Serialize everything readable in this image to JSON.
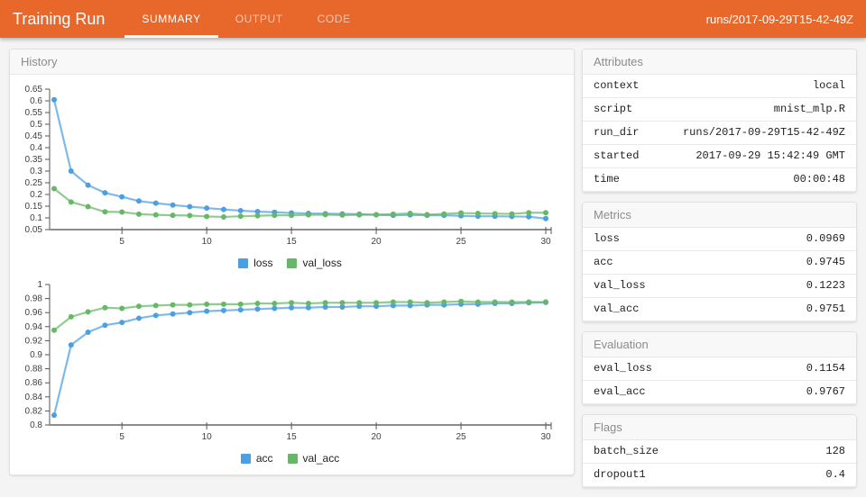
{
  "app": {
    "title": "Training Run",
    "tabs": [
      {
        "label": "SUMMARY",
        "active": true
      },
      {
        "label": "OUTPUT",
        "active": false
      },
      {
        "label": "CODE",
        "active": false
      }
    ],
    "run_label": "runs/2017-09-29T15-42-49Z",
    "accent_color": "#e8682c"
  },
  "history_panel": {
    "title": "History"
  },
  "chart_data": [
    {
      "name": "loss-chart",
      "type": "line",
      "x": [
        1,
        2,
        3,
        4,
        5,
        6,
        7,
        8,
        9,
        10,
        11,
        12,
        13,
        14,
        15,
        16,
        17,
        18,
        19,
        20,
        21,
        22,
        23,
        24,
        25,
        26,
        27,
        28,
        29,
        30
      ],
      "xticks": [
        5,
        10,
        15,
        20,
        25,
        30
      ],
      "ylim": [
        0.05,
        0.65
      ],
      "ytick_step": 0.05,
      "grid": false,
      "legend_position": "bottom-center",
      "series": [
        {
          "name": "loss",
          "color": "#4c9fe0",
          "values": [
            0.605,
            0.3,
            0.24,
            0.207,
            0.19,
            0.172,
            0.163,
            0.155,
            0.148,
            0.142,
            0.136,
            0.131,
            0.127,
            0.124,
            0.121,
            0.119,
            0.118,
            0.117,
            0.116,
            0.113,
            0.111,
            0.113,
            0.111,
            0.111,
            0.109,
            0.107,
            0.107,
            0.106,
            0.105,
            0.097
          ]
        },
        {
          "name": "val_loss",
          "color": "#66b766",
          "values": [
            0.225,
            0.168,
            0.148,
            0.126,
            0.125,
            0.116,
            0.113,
            0.111,
            0.11,
            0.106,
            0.104,
            0.107,
            0.109,
            0.111,
            0.111,
            0.113,
            0.114,
            0.112,
            0.113,
            0.114,
            0.116,
            0.119,
            0.114,
            0.117,
            0.121,
            0.119,
            0.118,
            0.117,
            0.122,
            0.122
          ]
        }
      ]
    },
    {
      "name": "accuracy-chart",
      "type": "line",
      "x": [
        1,
        2,
        3,
        4,
        5,
        6,
        7,
        8,
        9,
        10,
        11,
        12,
        13,
        14,
        15,
        16,
        17,
        18,
        19,
        20,
        21,
        22,
        23,
        24,
        25,
        26,
        27,
        28,
        29,
        30
      ],
      "xticks": [
        5,
        10,
        15,
        20,
        25,
        30
      ],
      "ylim": [
        0.8,
        1.0
      ],
      "ytick_step": 0.02,
      "grid": false,
      "legend_position": "bottom-center",
      "series": [
        {
          "name": "acc",
          "color": "#4c9fe0",
          "values": [
            0.814,
            0.914,
            0.932,
            0.942,
            0.946,
            0.952,
            0.956,
            0.958,
            0.96,
            0.962,
            0.963,
            0.964,
            0.965,
            0.966,
            0.967,
            0.967,
            0.968,
            0.968,
            0.969,
            0.969,
            0.97,
            0.97,
            0.971,
            0.971,
            0.972,
            0.972,
            0.973,
            0.973,
            0.974,
            0.9745
          ]
        },
        {
          "name": "val_acc",
          "color": "#66b766",
          "values": [
            0.935,
            0.954,
            0.961,
            0.967,
            0.966,
            0.969,
            0.97,
            0.971,
            0.971,
            0.972,
            0.972,
            0.972,
            0.973,
            0.973,
            0.974,
            0.973,
            0.974,
            0.974,
            0.974,
            0.974,
            0.975,
            0.975,
            0.974,
            0.975,
            0.976,
            0.975,
            0.975,
            0.975,
            0.975,
            0.9751
          ]
        }
      ]
    }
  ],
  "panels": [
    {
      "id": "attributes",
      "title": "Attributes",
      "rows": [
        {
          "key": "context",
          "value": "local"
        },
        {
          "key": "script",
          "value": "mnist_mlp.R"
        },
        {
          "key": "run_dir",
          "value": "runs/2017-09-29T15-42-49Z"
        },
        {
          "key": "started",
          "value": "2017-09-29 15:42:49 GMT"
        },
        {
          "key": "time",
          "value": "00:00:48"
        }
      ]
    },
    {
      "id": "metrics",
      "title": "Metrics",
      "rows": [
        {
          "key": "loss",
          "value": "0.0969"
        },
        {
          "key": "acc",
          "value": "0.9745"
        },
        {
          "key": "val_loss",
          "value": "0.1223"
        },
        {
          "key": "val_acc",
          "value": "0.9751"
        }
      ]
    },
    {
      "id": "evaluation",
      "title": "Evaluation",
      "rows": [
        {
          "key": "eval_loss",
          "value": "0.1154"
        },
        {
          "key": "eval_acc",
          "value": "0.9767"
        }
      ]
    },
    {
      "id": "flags",
      "title": "Flags",
      "rows": [
        {
          "key": "batch_size",
          "value": "128"
        },
        {
          "key": "dropout1",
          "value": "0.4"
        }
      ]
    }
  ]
}
